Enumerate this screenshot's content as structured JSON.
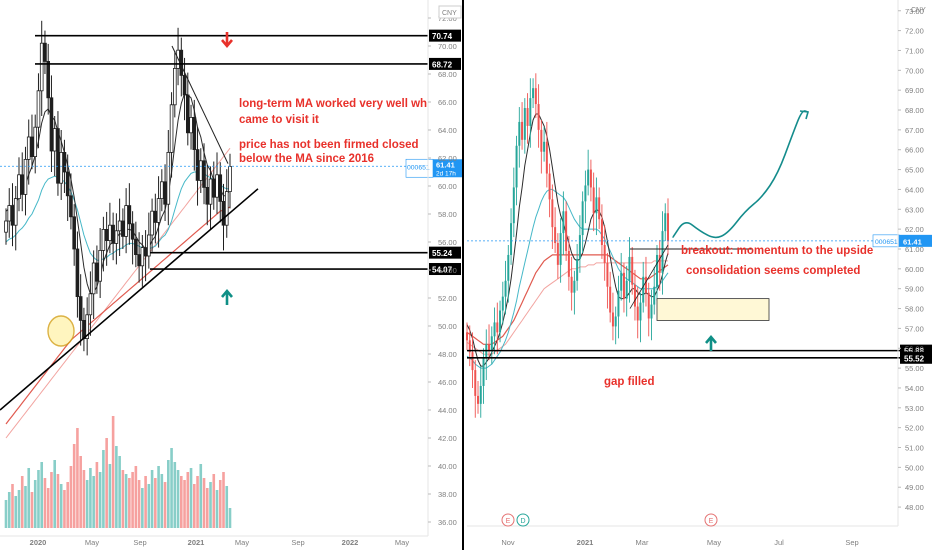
{
  "colors": {
    "up": "#26a69a",
    "down": "#ef5350",
    "candle_body": "#1f1f1f",
    "ma_fast": "#2b2b2b",
    "ma_mid": "#46b8c8",
    "ma_slow": "#e05a4f",
    "ma_slowest": "#f2a4a0",
    "annotation": "#e8312b",
    "arrow_up": "#0f8f86",
    "price_tag": "#2196f3",
    "circle_fill": "#fff3b0",
    "circle_stroke": "#d4a017",
    "zone_fill": "#fff8d6",
    "zone_stroke": "#333333",
    "grid_text": "#808080",
    "event_red": "#e57373",
    "event_blue": "#26a69a"
  },
  "currency_label": "CNY",
  "chart_data": [
    {
      "type": "candlestick",
      "panel": "left",
      "ticker": "000651",
      "last_price": "61.41",
      "countdown": "2d 17h",
      "y_ticks": [
        "72.00",
        "70.00",
        "68.00",
        "66.00",
        "64.00",
        "62.00",
        "60.00",
        "58.00",
        "56.00",
        "54.00",
        "52.00",
        "50.00",
        "48.00",
        "46.00",
        "44.00",
        "42.00",
        "40.00",
        "38.00",
        "36.00"
      ],
      "x_ticks": [
        "2020",
        "May",
        "Sep",
        "2021",
        "May",
        "Sep",
        "2022",
        "May"
      ],
      "ylim": [
        35,
        73
      ],
      "levels": [
        {
          "price": 70.74,
          "label": "70.74"
        },
        {
          "price": 68.72,
          "label": "68.72"
        },
        {
          "price": 55.24,
          "label": "55.24"
        },
        {
          "price": 54.07,
          "label": "54.07"
        }
      ],
      "annotations": [
        "long-term MA worked very well wh",
        "came to visit it",
        "price has not been firmed closed",
        "below the MA since 2016"
      ],
      "closes": [
        57.5,
        58.6,
        57.2,
        59.1,
        60.8,
        59.4,
        61.9,
        63.5,
        62.1,
        64.2,
        66.8,
        70.2,
        68.9,
        66.3,
        62.5,
        64.1,
        60.2,
        62.4,
        61.0,
        59.3,
        57.8,
        55.5,
        52.1,
        50.4,
        49.1,
        50.8,
        52.3,
        54.5,
        53.2,
        55.4,
        56.9,
        56.1,
        57.2,
        55.9,
        56.8,
        57.5,
        56.4,
        58.6,
        57.3,
        56.2,
        55.1,
        54.3,
        55.6,
        55.0,
        56.5,
        58.2,
        57.4,
        59.1,
        60.3,
        58.7,
        62.4,
        65.8,
        68.4,
        69.7,
        67.9,
        66.5,
        63.8,
        64.9,
        62.6,
        60.4,
        61.8,
        59.9,
        58.7,
        60.5,
        59.2,
        60.8,
        58.9,
        57.2,
        59.6,
        61.4
      ],
      "ma_fast": [
        58.2,
        58.4,
        58.5,
        58.8,
        59.2,
        59.6,
        60.1,
        60.8,
        61.4,
        62.2,
        63.2,
        64.5,
        65.3,
        65.5,
        65.0,
        64.7,
        63.9,
        63.2,
        62.4,
        61.5,
        60.5,
        59.2,
        57.6,
        55.9,
        54.2,
        53.0,
        52.3,
        52.4,
        52.8,
        53.6,
        54.6,
        55.2,
        55.8,
        56.0,
        56.3,
        56.6,
        56.5,
        56.9,
        56.9,
        56.8,
        56.4,
        56.0,
        55.8,
        55.5,
        55.6,
        56.1,
        56.4,
        57.1,
        57.8,
        58.3,
        59.4,
        61.0,
        62.9,
        64.7,
        65.9,
        66.6,
        66.5,
        66.3,
        65.4,
        64.2,
        63.5,
        62.4,
        61.5,
        61.1,
        60.4,
        60.3,
        59.8,
        59.3,
        59.3,
        59.8
      ],
      "ma_mid": [
        56.0,
        56.2,
        56.3,
        56.5,
        56.8,
        57.0,
        57.3,
        57.7,
        58.0,
        58.5,
        59.0,
        59.7,
        60.2,
        60.5,
        60.6,
        60.7,
        60.6,
        60.5,
        60.3,
        60.0,
        59.6,
        59.0,
        58.3,
        57.4,
        56.5,
        55.8,
        55.2,
        54.9,
        54.7,
        54.7,
        54.8,
        54.9,
        55.1,
        55.2,
        55.4,
        55.5,
        55.6,
        55.8,
        55.9,
        55.9,
        55.8,
        55.7,
        55.6,
        55.5,
        55.5,
        55.6,
        55.7,
        56.0,
        56.3,
        56.5,
        56.9,
        57.5,
        58.3,
        59.1,
        59.8,
        60.3,
        60.6,
        60.9,
        61.0,
        61.0,
        61.0,
        60.9,
        60.7,
        60.6,
        60.4,
        60.3,
        60.1,
        59.9,
        59.8,
        59.8
      ],
      "ma_slow": [
        43.0,
        43.3,
        43.6,
        43.9,
        44.2,
        44.5,
        44.8,
        45.1,
        45.4,
        45.7,
        46.0,
        46.3,
        46.6,
        46.9,
        47.2,
        47.5,
        47.8,
        48.1,
        48.4,
        48.7,
        49.0,
        49.2,
        49.4,
        49.6,
        49.8,
        50.0,
        50.2,
        50.4,
        50.6,
        50.8,
        51.0,
        51.2,
        51.4,
        51.6,
        51.8,
        52.0,
        52.2,
        52.4,
        52.6,
        52.8,
        53.0,
        53.2,
        53.4,
        53.6,
        53.8,
        54.0,
        54.2,
        54.4,
        54.6,
        54.8,
        55.0,
        55.2,
        55.4,
        55.6,
        55.8,
        56.0,
        56.2,
        56.4,
        56.6,
        56.8,
        57.0,
        57.2,
        57.4,
        57.6,
        57.8,
        58.0,
        58.2,
        58.3,
        58.4,
        58.5
      ],
      "ma_slowest": [
        42.0,
        42.3,
        42.6,
        42.9,
        43.2,
        43.5,
        43.8,
        44.1,
        44.4,
        44.7,
        45.0,
        45.3,
        45.6,
        45.9,
        46.2,
        46.5,
        46.8,
        47.1,
        47.4,
        47.7,
        48.0,
        48.3,
        48.6,
        48.9,
        49.2,
        49.5,
        49.8,
        50.1,
        50.4,
        50.7,
        51.0,
        51.3,
        51.6,
        51.9,
        52.2,
        52.5,
        52.8,
        53.1,
        53.4,
        53.7,
        54.0,
        54.3,
        54.6,
        54.9,
        55.2,
        55.5,
        55.8,
        56.1,
        56.4,
        56.7,
        57.0,
        57.3,
        57.6,
        57.9,
        58.2,
        58.5,
        58.8,
        59.1,
        59.4,
        59.7,
        60.0,
        60.3,
        60.6,
        60.9,
        61.2,
        61.5,
        61.8,
        62.1,
        62.4,
        62.7
      ],
      "volume": [
        1.4,
        1.8,
        2.2,
        1.6,
        1.9,
        2.6,
        2.1,
        3.0,
        1.8,
        2.4,
        2.9,
        3.3,
        2.5,
        2.0,
        2.8,
        3.4,
        2.7,
        2.2,
        1.9,
        2.3,
        3.1,
        4.2,
        5.0,
        3.6,
        2.9,
        2.4,
        3.0,
        2.6,
        3.3,
        2.8,
        3.9,
        4.5,
        3.2,
        5.6,
        4.1,
        3.6,
        2.9,
        2.7,
        2.5,
        2.8,
        3.1,
        2.4,
        2.0,
        2.6,
        2.2,
        2.9,
        2.5,
        3.1,
        2.7,
        2.3,
        3.4,
        4.0,
        3.3,
        2.9,
        2.6,
        2.4,
        2.8,
        3.0,
        2.2,
        2.6,
        3.2,
        2.5,
        2.0,
        2.3,
        2.7,
        1.9,
        2.4,
        2.8,
        2.1,
        1.0
      ]
    },
    {
      "type": "candlestick",
      "panel": "right",
      "ticker": "000651",
      "last_price": "61.41",
      "y_ticks": [
        "73.00",
        "72.00",
        "71.00",
        "70.00",
        "69.00",
        "68.00",
        "67.00",
        "66.00",
        "65.00",
        "64.00",
        "63.00",
        "62.00",
        "61.00",
        "60.00",
        "59.00",
        "58.00",
        "57.00",
        "56.00",
        "55.00",
        "54.00",
        "53.00",
        "52.00",
        "51.00",
        "50.00",
        "49.00",
        "48.00"
      ],
      "x_ticks": [
        "Nov",
        "2021",
        "Mar",
        "May",
        "Jul",
        "Sep"
      ],
      "ylim": [
        47.5,
        73.3
      ],
      "levels": [
        {
          "price": 55.88,
          "label": "55.88"
        },
        {
          "price": 55.52,
          "label": "55.52"
        }
      ],
      "annotations": [
        "breakout: momentum to the upside",
        "consolidation seems completed",
        "gap filled"
      ],
      "zone": {
        "from": 57.4,
        "to": 58.5
      },
      "projection": [
        61.6,
        62.5,
        61.9,
        61.5,
        61.8,
        62.9,
        63.6,
        64.8,
        66.7,
        68.0,
        67.9
      ],
      "events": [
        {
          "kind": "E",
          "color_key": "event_red"
        },
        {
          "kind": "D",
          "color_key": "event_blue"
        },
        {
          "kind": "E",
          "color_key": "event_red"
        }
      ],
      "closes": [
        56.4,
        55.8,
        54.9,
        53.6,
        53.2,
        54.1,
        55.5,
        56.2,
        55.9,
        56.6,
        57.3,
        56.8,
        57.9,
        58.6,
        59.4,
        60.7,
        62.3,
        64.1,
        66.2,
        67.4,
        66.5,
        68.1,
        67.2,
        68.6,
        69.1,
        68.3,
        67.0,
        65.9,
        66.4,
        64.8,
        63.5,
        62.1,
        61.3,
        60.2,
        61.8,
        62.9,
        60.9,
        59.6,
        58.8,
        59.4,
        60.5,
        61.7,
        63.4,
        64.2,
        65.0,
        64.1,
        62.8,
        63.6,
        62.5,
        61.2,
        60.3,
        59.1,
        57.8,
        57.1,
        57.6,
        58.9,
        59.8,
        58.5,
        59.4,
        60.6,
        59.2,
        58.1,
        57.4,
        58.3,
        59.6,
        58.8,
        57.5,
        58.2,
        59.1,
        60.7,
        59.8,
        61.9,
        62.8,
        61.4
      ],
      "ma_fast": [
        57.2,
        56.9,
        56.5,
        55.9,
        55.4,
        55.1,
        55.1,
        55.3,
        55.5,
        55.8,
        56.1,
        56.4,
        56.8,
        57.3,
        57.9,
        58.6,
        59.5,
        60.6,
        61.8,
        63.1,
        64.1,
        65.2,
        66.0,
        66.8,
        67.5,
        67.8,
        67.8,
        67.5,
        67.2,
        66.7,
        66.0,
        65.1,
        64.2,
        63.3,
        62.7,
        62.3,
        61.8,
        61.3,
        60.8,
        60.5,
        60.4,
        60.5,
        60.8,
        61.3,
        61.9,
        62.5,
        62.8,
        63.0,
        62.9,
        62.6,
        62.1,
        61.4,
        60.6,
        59.8,
        59.1,
        58.6,
        58.5,
        58.5,
        58.6,
        58.8,
        59.0,
        59.0,
        58.8,
        58.7,
        58.7,
        58.8,
        58.7,
        58.6,
        58.6,
        58.9,
        59.2,
        59.7,
        60.3,
        60.8
      ],
      "ma_mid": [
        55.6,
        55.5,
        55.4,
        55.2,
        55.1,
        55.0,
        55.0,
        55.0,
        55.1,
        55.2,
        55.4,
        55.6,
        55.8,
        56.1,
        56.4,
        56.8,
        57.3,
        57.8,
        58.4,
        59.1,
        59.7,
        60.3,
        60.9,
        61.5,
        62.1,
        62.6,
        63.0,
        63.4,
        63.7,
        63.9,
        64.0,
        64.0,
        63.9,
        63.8,
        63.7,
        63.6,
        63.4,
        63.1,
        62.8,
        62.5,
        62.3,
        62.1,
        62.0,
        62.0,
        62.0,
        62.0,
        62.0,
        62.0,
        61.9,
        61.7,
        61.5,
        61.2,
        60.9,
        60.6,
        60.3,
        60.0,
        59.8,
        59.6,
        59.5,
        59.4,
        59.3,
        59.2,
        59.1,
        59.0,
        59.0,
        59.0,
        59.0,
        59.0,
        59.0,
        59.1,
        59.2,
        59.4,
        59.6,
        59.8
      ],
      "ma_slow": [
        56.8,
        56.7,
        56.6,
        56.5,
        56.4,
        56.3,
        56.2,
        56.2,
        56.2,
        56.2,
        56.3,
        56.4,
        56.5,
        56.6,
        56.8,
        57.0,
        57.2,
        57.4,
        57.7,
        58.0,
        58.3,
        58.6,
        58.9,
        59.2,
        59.5,
        59.8,
        60.0,
        60.2,
        60.4,
        60.5,
        60.6,
        60.7,
        60.7,
        60.7,
        60.7,
        60.7,
        60.7,
        60.7,
        60.7,
        60.7,
        60.7,
        60.7,
        60.7,
        60.7,
        60.7,
        60.7,
        60.7,
        60.7,
        60.7,
        60.7,
        60.7,
        60.7,
        60.6,
        60.5,
        60.4,
        60.3,
        60.2,
        60.1,
        60.0,
        59.9,
        59.8,
        59.7,
        59.6,
        59.5,
        59.5,
        59.5,
        59.5,
        59.6,
        59.7,
        59.8,
        59.9,
        60.0,
        60.1,
        60.2
      ],
      "ma_slowest": [
        56.3,
        56.2,
        56.1,
        56.0,
        55.9,
        55.8,
        55.7,
        55.7,
        55.7,
        55.7,
        55.8,
        55.9,
        56.0,
        56.1,
        56.2,
        56.4,
        56.6,
        56.8,
        57.0,
        57.2,
        57.4,
        57.6,
        57.8,
        58.0,
        58.2,
        58.4,
        58.6,
        58.8,
        59.0,
        59.1,
        59.2,
        59.3,
        59.4,
        59.5,
        59.6,
        59.7,
        59.8,
        59.9,
        60.0,
        60.0,
        60.0,
        60.1,
        60.1,
        60.1,
        60.2,
        60.2,
        60.2,
        60.3,
        60.3,
        60.3,
        60.3,
        60.3,
        60.3,
        60.3,
        60.3,
        60.3,
        60.3,
        60.3,
        60.3,
        60.3,
        60.3,
        60.3,
        60.3,
        60.3,
        60.3,
        60.3,
        60.3,
        60.3,
        60.4,
        60.4,
        60.4,
        60.4,
        60.4,
        60.4
      ]
    }
  ]
}
